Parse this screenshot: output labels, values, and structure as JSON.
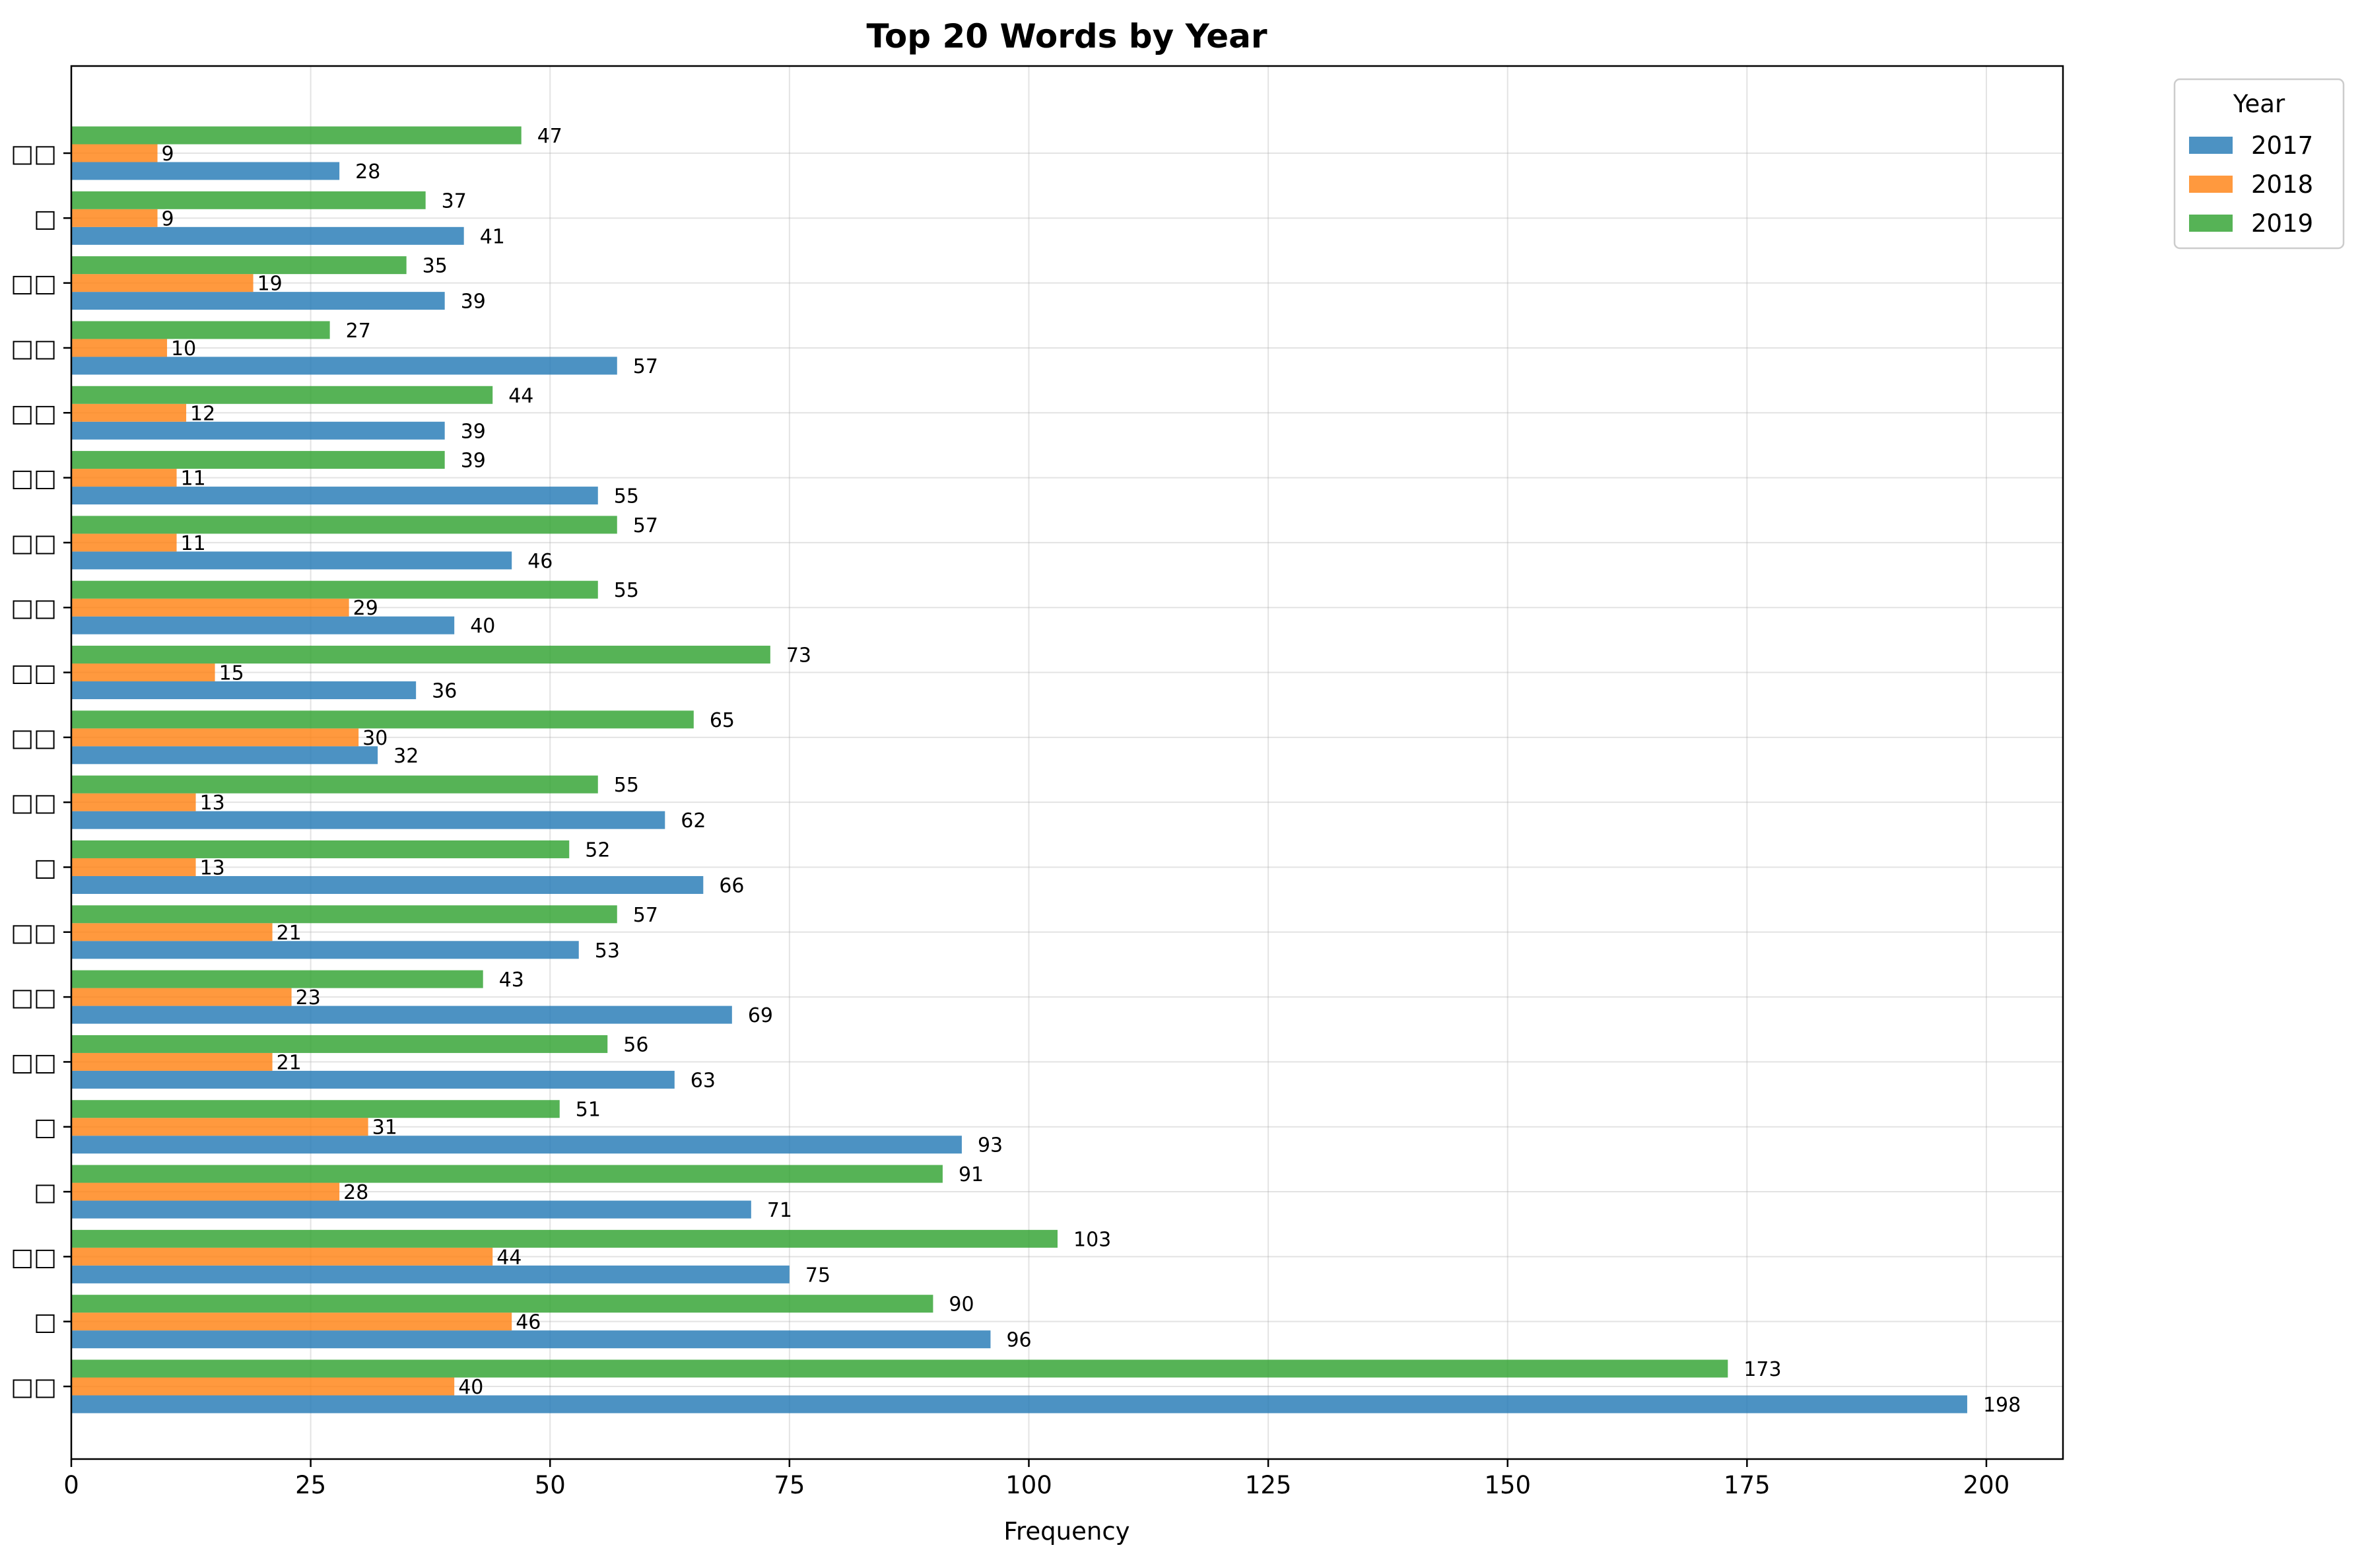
{
  "chart_data": {
    "type": "bar",
    "orientation": "horizontal",
    "title": "Top 20 Words by Year",
    "xlabel": "Frequency",
    "ylabel": "",
    "xlim": [
      0,
      208
    ],
    "xticks": [
      0,
      25,
      50,
      75,
      100,
      125,
      150,
      175,
      200
    ],
    "grid": true,
    "legend": {
      "title": "Year",
      "placement": "outside-top-right"
    },
    "categories": [
      "□□",
      "□",
      "□□",
      "□",
      "□",
      "□□",
      "□□",
      "□□",
      "□",
      "□□",
      "□□",
      "□□",
      "□□",
      "□□",
      "□□",
      "□□",
      "□□",
      "□□",
      "□",
      "□□"
    ],
    "series": [
      {
        "name": "2017",
        "color": "#1f77b4",
        "values": [
          198,
          96,
          75,
          71,
          93,
          63,
          69,
          53,
          66,
          62,
          32,
          36,
          40,
          46,
          55,
          39,
          57,
          39,
          41,
          28
        ]
      },
      {
        "name": "2018",
        "color": "#ff7f0e",
        "values": [
          40,
          46,
          44,
          28,
          31,
          21,
          23,
          21,
          13,
          13,
          30,
          15,
          29,
          11,
          11,
          12,
          10,
          19,
          9,
          9
        ]
      },
      {
        "name": "2019",
        "color": "#2ca02c",
        "values": [
          173,
          90,
          103,
          91,
          51,
          56,
          43,
          57,
          52,
          55,
          65,
          73,
          55,
          57,
          39,
          44,
          27,
          35,
          37,
          47
        ]
      }
    ]
  }
}
